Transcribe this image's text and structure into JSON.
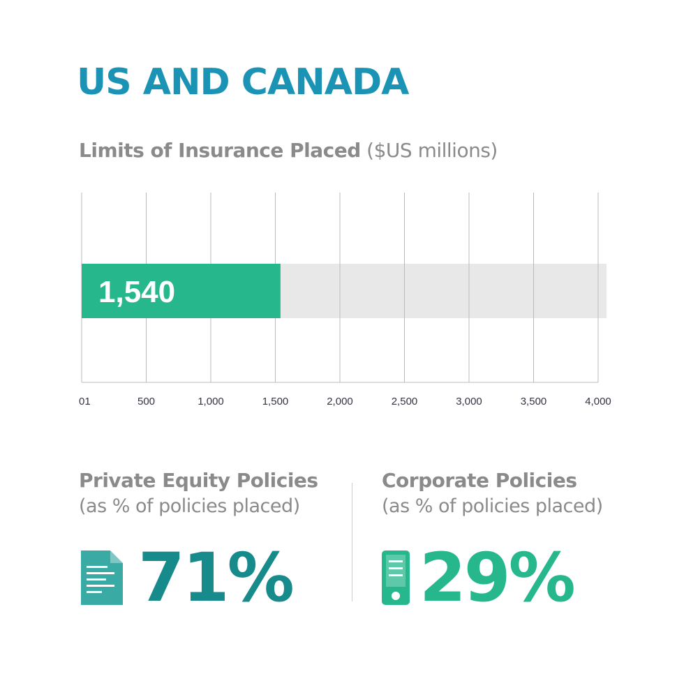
{
  "title": "US AND CANADA",
  "subtitle_bold": "Limits of Insurance Placed",
  "subtitle_light": "($US millions)",
  "colors": {
    "title": "#1b93b5",
    "grey_text": "#8a8a8a",
    "bar_fill": "#27b78d",
    "track": "#e8e8e8",
    "gridline": "#bbbbbb",
    "tick_text": "#333344",
    "private_equity": "#178a8c",
    "private_equity_icon": "#3aaaa5",
    "corporate": "#27b78d"
  },
  "chart_data": {
    "type": "bar",
    "orientation": "horizontal",
    "categories": [
      ""
    ],
    "values": [
      1540
    ],
    "data_labels": [
      "1,540"
    ],
    "xlim": [
      0,
      4000
    ],
    "x_ticks": [
      0,
      500,
      1000,
      1500,
      2000,
      2500,
      3000,
      3500,
      4000
    ],
    "x_tick_labels": [
      "01",
      "500",
      "1,000",
      "1,500",
      "2,000",
      "2,500",
      "3,000",
      "3,500",
      "4,000"
    ],
    "grid": true
  },
  "private_equity": {
    "title": "Private Equity Policies",
    "subtitle": "(as % of policies placed)",
    "value": "71%",
    "icon": "document-icon"
  },
  "corporate": {
    "title": "Corporate Policies",
    "subtitle": "(as % of policies placed)",
    "value": "29%",
    "icon": "phone-icon"
  }
}
